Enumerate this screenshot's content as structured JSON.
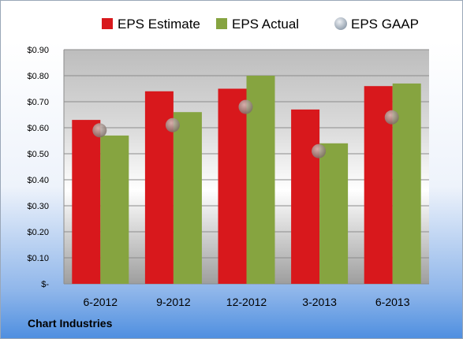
{
  "company": "Chart Industries",
  "legend": [
    {
      "label": "EPS Estimate",
      "color": "#d8181c",
      "marker": "square"
    },
    {
      "label": "EPS Actual",
      "color": "#86a440",
      "marker": "square"
    },
    {
      "label": "EPS GAAP",
      "color": "#b8c3cf",
      "marker": "circle"
    }
  ],
  "chart_data": {
    "type": "bar",
    "title": "",
    "xlabel": "",
    "ylabel": "",
    "categories": [
      "6-2012",
      "9-2012",
      "12-2012",
      "3-2013",
      "6-2013"
    ],
    "series": [
      {
        "name": "EPS Estimate",
        "kind": "bar",
        "color": "#d8181c",
        "values": [
          0.63,
          0.74,
          0.75,
          0.67,
          0.76
        ]
      },
      {
        "name": "EPS Actual",
        "kind": "bar",
        "color": "#86a440",
        "values": [
          0.57,
          0.66,
          0.8,
          0.54,
          0.77
        ]
      },
      {
        "name": "EPS GAAP",
        "kind": "marker",
        "color": "#9c8f8a",
        "values": [
          0.59,
          0.61,
          0.68,
          0.51,
          0.64
        ]
      }
    ],
    "ylim": [
      0,
      0.9
    ],
    "yticks": [
      0,
      0.1,
      0.2,
      0.3,
      0.4,
      0.5,
      0.6,
      0.7,
      0.8,
      0.9
    ],
    "ytick_labels": [
      "$-",
      "$0.10",
      "$0.20",
      "$0.30",
      "$0.40",
      "$0.50",
      "$0.60",
      "$0.70",
      "$0.80",
      "$0.90"
    ],
    "grid": true,
    "legend_position": "top"
  }
}
